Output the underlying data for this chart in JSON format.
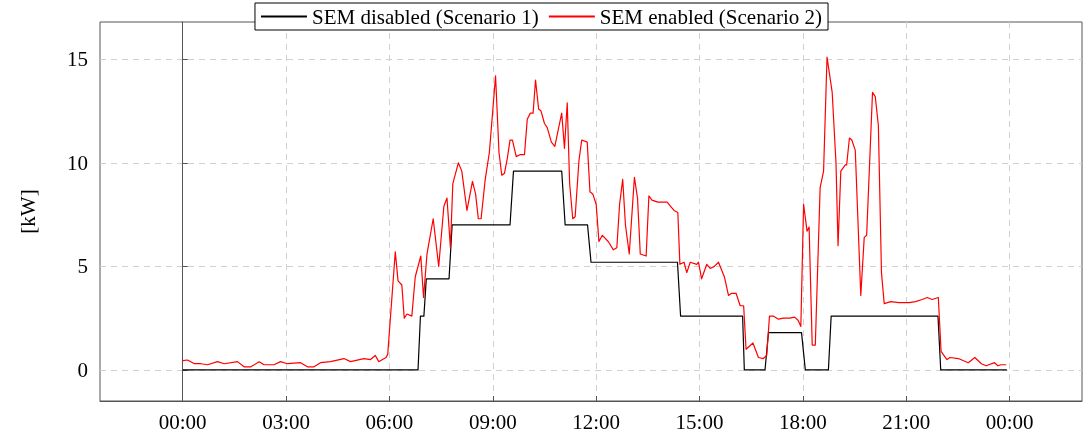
{
  "chart_data": {
    "type": "line",
    "ylabel": "[kW]",
    "xlim": [
      -2.4,
      26.1
    ],
    "xticks": [
      {
        "value": 0,
        "label": "00:00"
      },
      {
        "value": 3,
        "label": "03:00"
      },
      {
        "value": 6,
        "label": "06:00"
      },
      {
        "value": 9,
        "label": "09:00"
      },
      {
        "value": 12,
        "label": "12:00"
      },
      {
        "value": 15,
        "label": "15:00"
      },
      {
        "value": 18,
        "label": "18:00"
      },
      {
        "value": 21,
        "label": "21:00"
      },
      {
        "value": 24,
        "label": "00:00"
      }
    ],
    "ylim": [
      -1.5,
      16.8
    ],
    "yticks": [
      0,
      5,
      10,
      15
    ],
    "grid": true,
    "legend": "top",
    "marker": "none",
    "line_style": "solid",
    "series": [
      {
        "name": "SEM disabled (Scenario 1)",
        "color": "#000000",
        "x": [
          0,
          6.83,
          6.9,
          7.0,
          7.07,
          7.73,
          7.82,
          9.5,
          9.6,
          11.0,
          11.1,
          11.75,
          11.85,
          14.36,
          14.45,
          16.25,
          16.3,
          16.9,
          17.0,
          17.96,
          18.07,
          18.74,
          18.82,
          21.92,
          22.0,
          23.92
        ],
        "values": [
          0,
          0,
          2.6,
          2.6,
          4.4,
          4.4,
          7.0,
          7.0,
          9.6,
          9.6,
          7.0,
          7.0,
          5.2,
          5.2,
          2.6,
          2.6,
          0,
          0,
          1.8,
          1.8,
          0,
          0,
          2.6,
          2.6,
          0,
          0
        ]
      },
      {
        "name": "SEM enabled (Scenario 2)",
        "color": "#ff0000",
        "x": [
          0,
          0.14,
          0.34,
          0.53,
          0.72,
          1.01,
          1.21,
          1.59,
          1.78,
          1.98,
          2.22,
          2.36,
          2.65,
          2.84,
          3.04,
          3.42,
          3.62,
          3.81,
          4.0,
          4.29,
          4.68,
          4.87,
          5.26,
          5.45,
          5.59,
          5.69,
          5.9,
          5.95,
          6.17,
          6.25,
          6.36,
          6.43,
          6.51,
          6.65,
          6.75,
          6.91,
          6.99,
          7.09,
          7.27,
          7.43,
          7.58,
          7.67,
          7.77,
          7.84,
          8.0,
          8.1,
          8.25,
          8.41,
          8.5,
          8.58,
          8.66,
          8.78,
          8.9,
          9.08,
          9.18,
          9.26,
          9.34,
          9.42,
          9.5,
          9.57,
          9.68,
          9.8,
          9.92,
          10.0,
          10.09,
          10.17,
          10.24,
          10.33,
          10.4,
          10.5,
          10.58,
          10.7,
          10.8,
          10.9,
          11.0,
          11.08,
          11.16,
          11.23,
          11.32,
          11.39,
          11.5,
          11.58,
          11.74,
          11.82,
          11.9,
          12.0,
          12.08,
          12.18,
          12.35,
          12.5,
          12.6,
          12.68,
          12.77,
          12.85,
          12.96,
          13.11,
          13.2,
          13.28,
          13.45,
          13.53,
          13.62,
          13.79,
          14.06,
          14.16,
          14.26,
          14.37,
          14.43,
          14.55,
          14.63,
          14.73,
          14.92,
          14.97,
          15.06,
          15.21,
          15.31,
          15.43,
          15.55,
          15.72,
          15.84,
          15.93,
          16.06,
          16.18,
          16.28,
          16.35,
          16.55,
          16.71,
          16.85,
          16.95,
          17.03,
          17.14,
          17.29,
          17.43,
          17.62,
          17.76,
          17.86,
          17.94,
          18.02,
          18.12,
          18.18,
          18.27,
          18.36,
          18.5,
          18.6,
          18.7,
          18.85,
          18.96,
          19.02,
          19.1,
          19.23,
          19.27,
          19.35,
          19.42,
          19.52,
          19.68,
          19.78,
          19.85,
          20.02,
          20.1,
          20.19,
          20.28,
          20.36,
          20.55,
          20.79,
          21.08,
          21.27,
          21.46,
          21.61,
          21.75,
          21.93,
          22.01,
          22.18,
          22.27,
          22.51,
          22.8,
          22.99,
          23.18,
          23.32,
          23.56,
          23.66,
          23.75,
          23.9
        ],
        "values": [
          0.45,
          0.48,
          0.3,
          0.3,
          0.25,
          0.4,
          0.3,
          0.4,
          0.15,
          0.15,
          0.4,
          0.25,
          0.25,
          0.4,
          0.3,
          0.35,
          0.15,
          0.15,
          0.35,
          0.4,
          0.55,
          0.4,
          0.55,
          0.5,
          0.7,
          0.4,
          0.6,
          0.75,
          5.7,
          4.3,
          4.1,
          2.5,
          2.7,
          2.6,
          4.5,
          5.5,
          3.5,
          5.6,
          7.3,
          5.0,
          7.9,
          8.3,
          5.9,
          9.0,
          10.0,
          9.6,
          7.7,
          9.1,
          8.5,
          7.3,
          7.3,
          9.2,
          10.5,
          14.2,
          10.5,
          9.4,
          9.5,
          10.2,
          11.1,
          11.1,
          10.3,
          10.4,
          10.4,
          12.1,
          12.4,
          12.4,
          14.0,
          12.6,
          12.5,
          11.9,
          11.7,
          11.0,
          10.8,
          11.6,
          12.4,
          10.7,
          12.9,
          9.0,
          7.3,
          7.4,
          10.1,
          11.1,
          11.0,
          8.6,
          8.5,
          8.0,
          6.2,
          6.5,
          6.2,
          5.8,
          5.9,
          8.0,
          9.2,
          7.0,
          5.6,
          9.3,
          8.3,
          5.6,
          5.5,
          8.4,
          8.2,
          8.1,
          8.1,
          7.9,
          7.7,
          7.6,
          5.1,
          5.2,
          4.7,
          5.2,
          5.1,
          5.2,
          4.4,
          5.1,
          4.9,
          5.0,
          5.2,
          4.5,
          3.6,
          3.7,
          3.7,
          3.1,
          3.1,
          1.0,
          1.3,
          0.6,
          0.55,
          0.7,
          2.6,
          2.6,
          2.45,
          2.5,
          2.5,
          2.55,
          2.4,
          2.1,
          8.0,
          6.7,
          6.9,
          1.2,
          1.2,
          8.8,
          9.6,
          15.1,
          13.4,
          10.0,
          6.0,
          9.6,
          9.9,
          9.9,
          11.2,
          11.1,
          10.6,
          3.6,
          6.4,
          6.5,
          13.4,
          13.2,
          11.8,
          4.7,
          3.2,
          3.3,
          3.25,
          3.25,
          3.3,
          3.4,
          3.5,
          3.4,
          3.5,
          0.9,
          0.5,
          0.6,
          0.55,
          0.35,
          0.6,
          0.3,
          0.2,
          0.35,
          0.2,
          0.25,
          0.25
        ]
      }
    ]
  }
}
